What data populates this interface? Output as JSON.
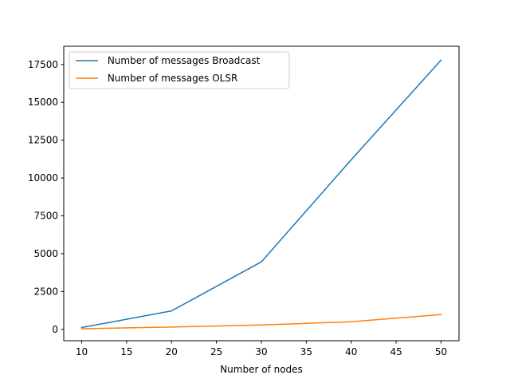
{
  "chart_data": {
    "type": "line",
    "title": "",
    "xlabel": "Number of nodes",
    "ylabel": "",
    "x": [
      10,
      20,
      30,
      40,
      50
    ],
    "series": [
      {
        "name": " Number of messages Broadcast",
        "color": "#1f77b4",
        "values": [
          120,
          1220,
          4460,
          11200,
          17790
        ]
      },
      {
        "name": " Number of messages OLSR",
        "color": "#ff7f0e",
        "values": [
          40,
          150,
          290,
          500,
          980
        ]
      }
    ],
    "xlim": [
      8,
      52
    ],
    "ylim": [
      -750,
      18700
    ],
    "xticks": [
      10,
      15,
      20,
      25,
      30,
      35,
      40,
      45,
      50
    ],
    "xtick_labels": [
      "10",
      "15",
      "20",
      "25",
      "30",
      "35",
      "40",
      "45",
      "50"
    ],
    "yticks": [
      0,
      2500,
      5000,
      7500,
      10000,
      12500,
      15000,
      17500
    ],
    "ytick_labels": [
      "0",
      "2500",
      "5000",
      "7500",
      "10000",
      "12500",
      "15000",
      "17500"
    ],
    "grid": false,
    "legend_position": "top-left"
  }
}
